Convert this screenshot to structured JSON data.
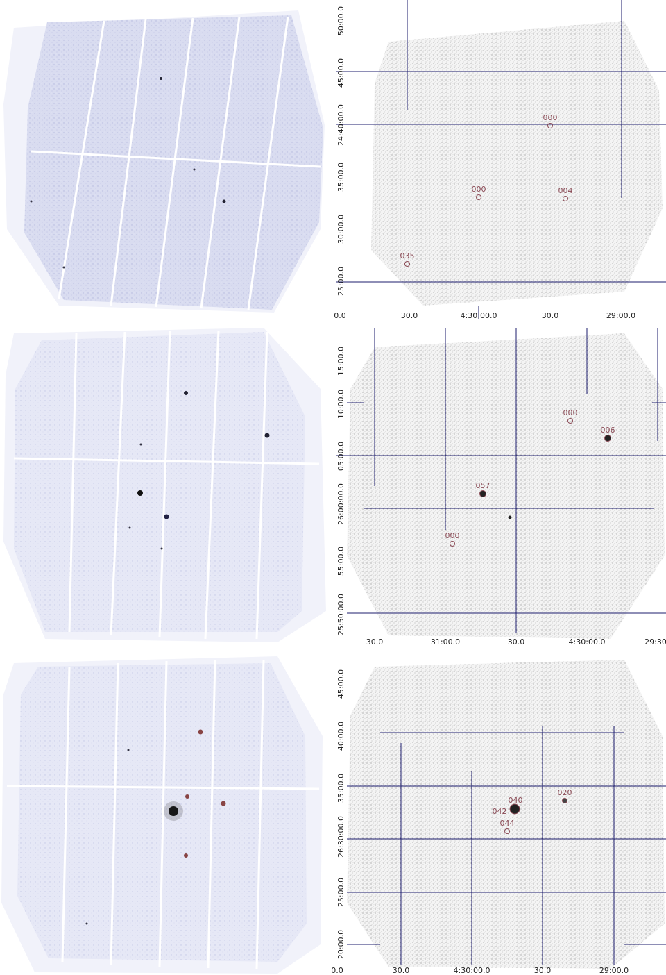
{
  "panels": [
    {
      "dec_labels": [
        "50:00.0",
        "45:00.0",
        "24:40:00.0",
        "35:00.0",
        "30:00.0",
        "25:00.0"
      ],
      "ra_labels": [
        "0.0",
        "30.0",
        "4:30:00.0",
        "30.0",
        "29:00.0"
      ],
      "sources": [
        "000",
        "000",
        "004",
        "035"
      ]
    },
    {
      "dec_labels": [
        "15:00.0",
        "10:00.0",
        "05:00.0",
        "26:00:00.0",
        "55:00.0",
        "25:50:00.0"
      ],
      "ra_labels": [
        "30.0",
        "31:00.0",
        "30.0",
        "4:30:00.0",
        "29:30"
      ],
      "sources": [
        "000",
        "006",
        "057",
        "000"
      ]
    },
    {
      "dec_labels": [
        "45:00.0",
        "40:00.0",
        "35:00.0",
        "26:30:00.0",
        "25:00.0",
        "20:00.0"
      ],
      "ra_labels": [
        "0.0",
        "30.0",
        "4:30:00.0",
        "30.0",
        "29:00.0"
      ],
      "sources": [
        "020",
        "040",
        "042",
        "044"
      ]
    }
  ]
}
